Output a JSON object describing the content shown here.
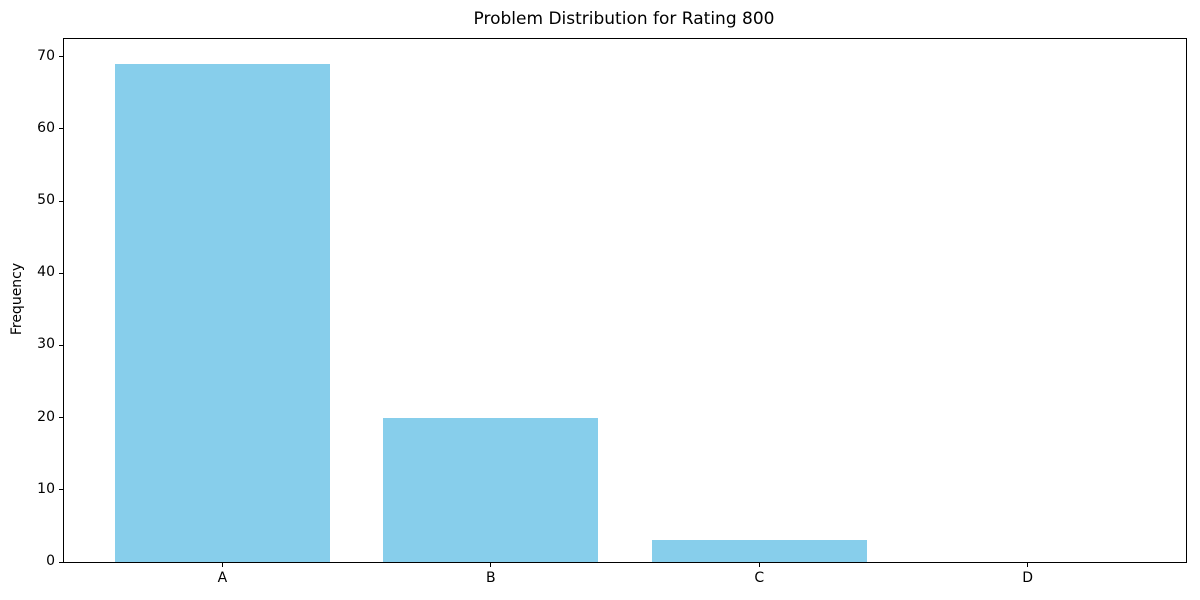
{
  "chart_data": {
    "type": "bar",
    "title": "Problem Distribution for Rating 800",
    "categories": [
      "A",
      "B",
      "C",
      "D"
    ],
    "values": [
      69,
      20,
      3,
      0
    ],
    "xlabel": "",
    "ylabel": "Frequency",
    "ylim": [
      0,
      72.45
    ],
    "yticks": [
      0,
      10,
      20,
      30,
      40,
      50,
      60,
      70
    ],
    "xlim": [
      -0.59,
      3.59
    ],
    "bar_width": 0.8,
    "bar_color": "#87CEEB",
    "axis_color": "#000000",
    "background_color": "#ffffff",
    "grid": false,
    "legend_position": "none"
  }
}
